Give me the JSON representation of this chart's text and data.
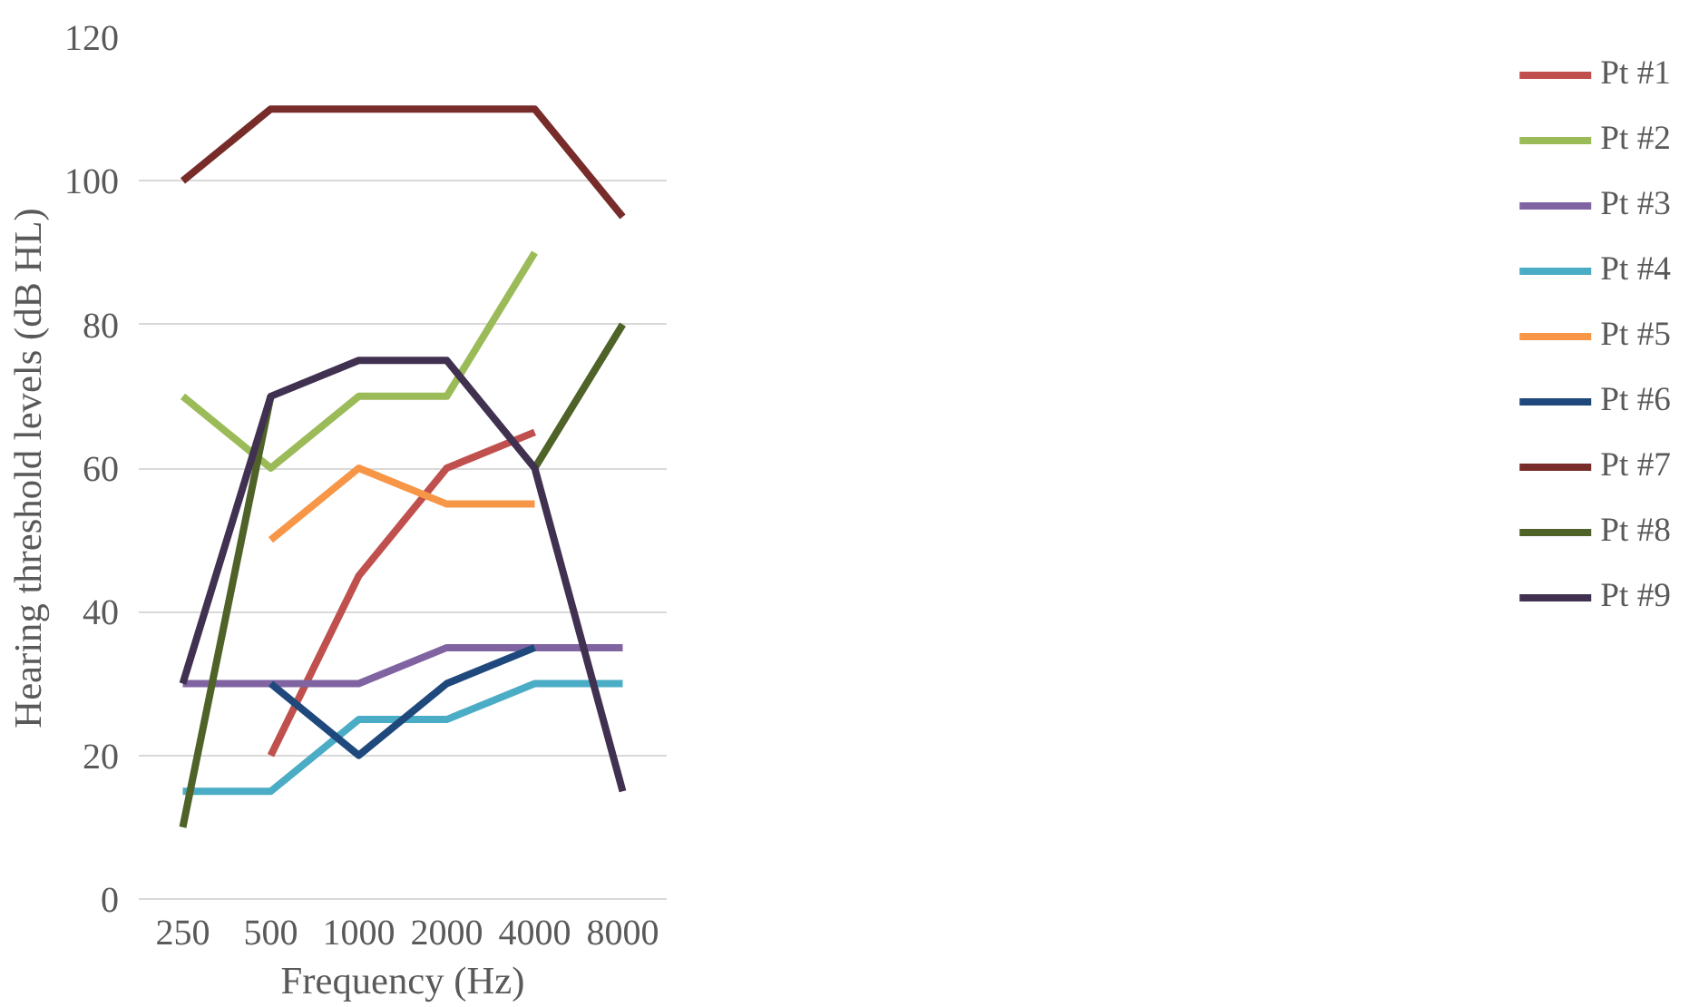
{
  "chart_data": {
    "type": "line",
    "xlabel": "Frequency (Hz)",
    "ylabel": "Hearing threshold levels (dB HL)",
    "categories": [
      "250",
      "500",
      "1000",
      "2000",
      "4000",
      "8000"
    ],
    "ylim": [
      0,
      120
    ],
    "yticks": [
      0,
      20,
      40,
      60,
      80,
      100,
      120
    ],
    "grid": "y",
    "legend": "right",
    "marker": "none",
    "line_style": "solid",
    "series": [
      {
        "name": "Pt #1",
        "color": "#c0504d",
        "values": [
          null,
          20,
          45,
          60,
          65,
          null
        ]
      },
      {
        "name": "Pt #2",
        "color": "#9bbb59",
        "values": [
          70,
          60,
          70,
          70,
          90,
          null
        ]
      },
      {
        "name": "Pt #3",
        "color": "#8064a2",
        "values": [
          30,
          30,
          30,
          35,
          35,
          35
        ]
      },
      {
        "name": "Pt #4",
        "color": "#4bacc6",
        "values": [
          15,
          15,
          25,
          25,
          30,
          30
        ]
      },
      {
        "name": "Pt #5",
        "color": "#f79646",
        "values": [
          null,
          50,
          60,
          55,
          55,
          null
        ]
      },
      {
        "name": "Pt #6",
        "color": "#1f497d",
        "values": [
          null,
          30,
          20,
          30,
          35,
          null
        ]
      },
      {
        "name": "Pt #7",
        "color": "#772c2a",
        "values": [
          100,
          110,
          110,
          110,
          110,
          95
        ]
      },
      {
        "name": "Pt #8",
        "color": "#4f6228",
        "values": [
          10,
          70,
          null,
          null,
          60,
          80
        ]
      },
      {
        "name": "Pt #9",
        "color": "#403151",
        "values": [
          30,
          70,
          75,
          75,
          60,
          15
        ]
      }
    ]
  }
}
